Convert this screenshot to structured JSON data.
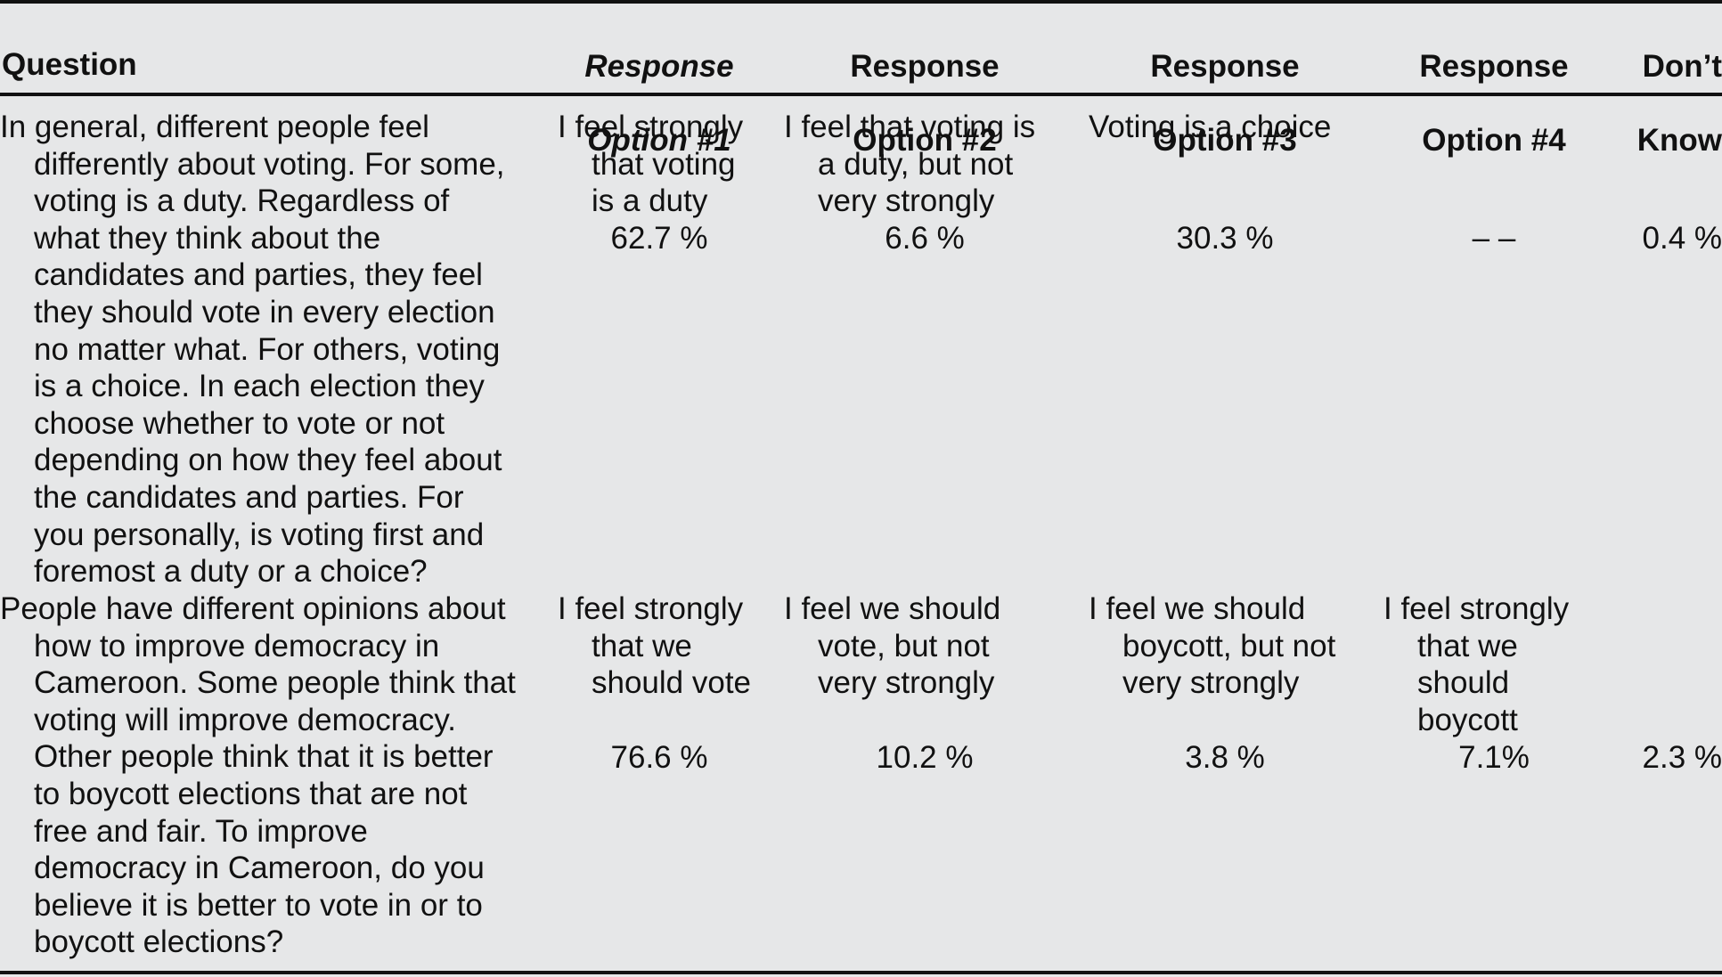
{
  "table": {
    "headers": {
      "question": "Question",
      "option1": [
        "Response",
        "Option #1"
      ],
      "option2": [
        "Response",
        "Option #2"
      ],
      "option3": [
        "Response",
        "Option #3"
      ],
      "option4": [
        "Response",
        "Option #4"
      ],
      "dont_know": [
        "Don’t",
        "Know"
      ]
    },
    "rows": [
      {
        "question_lines": [
          "In general, different people feel",
          "differently about voting. For some,",
          "voting is a duty. Regardless of",
          "what they think about the",
          "candidates and parties, they feel",
          "they should vote in every election",
          "no matter what. For others, voting",
          "is a choice. In each election they",
          "choose whether to vote or not",
          "depending on how they feel about",
          "the candidates and parties. For",
          "you personally, is voting first and",
          "foremost a duty or a choice?"
        ],
        "option1_lines": [
          "I feel strongly",
          "that voting",
          "is a duty"
        ],
        "option2_lines": [
          "I feel that voting is",
          "a duty, but not",
          "very strongly"
        ],
        "option3_lines": [
          "Voting is a choice"
        ],
        "option4_lines": [],
        "option1_pct": "62.7 %",
        "option2_pct": "6.6 %",
        "option3_pct": "30.3 %",
        "option4_pct": "– –",
        "dont_know_pct": "0.4 %"
      },
      {
        "question_lines": [
          "People have different opinions about",
          "how to improve democracy in",
          "Cameroon. Some people think that",
          "voting will improve democracy.",
          "Other people think that it is better",
          "to boycott elections that are not",
          "free and fair. To improve",
          "democracy in Cameroon, do you",
          "believe it is better to vote in or to",
          "boycott elections?"
        ],
        "option1_lines": [
          "I feel strongly",
          "that we",
          "should vote"
        ],
        "option2_lines": [
          "I feel we should",
          "vote, but not",
          "very strongly"
        ],
        "option3_lines": [
          "I feel we should",
          "boycott, but not",
          "very strongly"
        ],
        "option4_lines": [
          "I feel strongly",
          "that we",
          "should",
          "boycott"
        ],
        "option1_pct": "76.6 %",
        "option2_pct": "10.2 %",
        "option3_pct": "3.8 %",
        "option4_pct": "7.1%",
        "dont_know_pct": "2.3 %"
      }
    ]
  }
}
